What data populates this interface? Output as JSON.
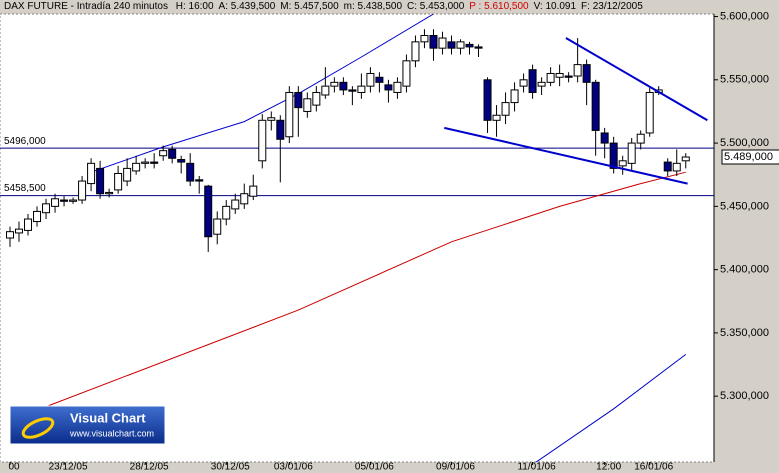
{
  "chart_data": {
    "type": "candlestick",
    "title": "DAX FUTURE - Intradía 240 minutos",
    "fields": [
      "H: 16:00",
      "A: 5.439,500",
      "M: 5.457,500",
      "m: 5.438,500",
      "C: 5.453,000",
      "P : 5.610,500",
      "V: 10.091",
      "F: 23/12/2005"
    ],
    "logo": {
      "title": "Visual Chart",
      "url": "www.visualchart.com"
    },
    "categories": [
      "00",
      null,
      null,
      null,
      null,
      null,
      "23/12/05",
      null,
      null,
      null,
      null,
      null,
      null,
      null,
      null,
      "28/12/05",
      null,
      null,
      null,
      null,
      null,
      null,
      null,
      null,
      "30/12/05",
      null,
      null,
      null,
      null,
      null,
      null,
      "03/01/06",
      null,
      null,
      null,
      null,
      null,
      null,
      null,
      null,
      "05/01/06",
      null,
      null,
      null,
      null,
      null,
      null,
      null,
      null,
      "09/01/06",
      null,
      null,
      null,
      null,
      null,
      null,
      null,
      null,
      "11/01/06",
      null,
      null,
      null,
      null,
      null,
      null,
      null,
      "12:00",
      null,
      null,
      null,
      null,
      "16/01/06",
      null,
      null,
      null,
      null
    ],
    "open": [
      5425,
      5429,
      5431,
      5438,
      5445,
      5450,
      5455,
      5454,
      5455,
      5468,
      5480,
      5460,
      5463,
      5470,
      5478,
      5484,
      5485,
      5490,
      5495,
      5487,
      5484,
      5471,
      5466,
      5428,
      5440,
      5448,
      5452,
      5458,
      5486,
      5518,
      5518,
      5505,
      5540,
      5525,
      5530,
      5538,
      5545,
      5548,
      5542,
      5540,
      5545,
      5552,
      5546,
      5540,
      5545,
      5565,
      5580,
      5585,
      5575,
      5580,
      5575,
      5578,
      5576,
      5550,
      5518,
      5522,
      5532,
      5545,
      5558,
      5545,
      5548,
      5552,
      5553,
      5553,
      5562,
      5548,
      5508,
      5500,
      5482,
      5484,
      5500,
      5508,
      5540,
      5485,
      5478,
      5486
    ],
    "high": [
      5434,
      5438,
      5444,
      5450,
      5456,
      5460,
      5458,
      5457,
      5474,
      5488,
      5486,
      5464,
      5482,
      5488,
      5490,
      5488,
      5492,
      5498,
      5498,
      5490,
      5492,
      5474,
      5467,
      5446,
      5455,
      5460,
      5468,
      5475,
      5523,
      5525,
      5522,
      5545,
      5545,
      5540,
      5545,
      5560,
      5552,
      5552,
      5545,
      5555,
      5560,
      5556,
      5550,
      5552,
      5570,
      5585,
      5590,
      5590,
      5588,
      5585,
      5582,
      5580,
      5578,
      5552,
      5530,
      5540,
      5548,
      5555,
      5562,
      5552,
      5560,
      5562,
      5556,
      5583,
      5566,
      5550,
      5512,
      5505,
      5490,
      5504,
      5510,
      5545,
      5545,
      5488,
      5495,
      5492
    ],
    "low": [
      5418,
      5422,
      5427,
      5434,
      5440,
      5445,
      5450,
      5452,
      5452,
      5462,
      5456,
      5457,
      5460,
      5466,
      5475,
      5480,
      5480,
      5486,
      5484,
      5476,
      5466,
      5460,
      5414,
      5420,
      5435,
      5444,
      5448,
      5455,
      5480,
      5510,
      5469,
      5500,
      5505,
      5520,
      5525,
      5535,
      5540,
      5538,
      5530,
      5535,
      5540,
      5540,
      5532,
      5535,
      5540,
      5560,
      5575,
      5565,
      5570,
      5570,
      5570,
      5570,
      5568,
      5508,
      5505,
      5515,
      5525,
      5540,
      5535,
      5538,
      5545,
      5545,
      5548,
      5548,
      5530,
      5490,
      5488,
      5476,
      5475,
      5478,
      5495,
      5505,
      5538,
      5474,
      5474,
      5480
    ],
    "close": [
      5430,
      5432,
      5440,
      5446,
      5452,
      5456,
      5454,
      5455,
      5470,
      5484,
      5460,
      5461,
      5476,
      5480,
      5484,
      5485,
      5484,
      5494,
      5488,
      5485,
      5470,
      5470,
      5426,
      5440,
      5450,
      5455,
      5460,
      5466,
      5518,
      5520,
      5503,
      5540,
      5528,
      5535,
      5540,
      5545,
      5548,
      5542,
      5541,
      5545,
      5555,
      5548,
      5542,
      5548,
      5565,
      5580,
      5585,
      5575,
      5583,
      5575,
      5580,
      5576,
      5575,
      5518,
      5522,
      5532,
      5542,
      5550,
      5540,
      5548,
      5555,
      5555,
      5552,
      5562,
      5548,
      5510,
      5500,
      5480,
      5486,
      5500,
      5507,
      5540,
      5542,
      5478,
      5484,
      5489
    ],
    "up_color": "#ffffff",
    "down_color": "#000080",
    "lines": [
      {
        "color": "#0000cc",
        "x": [
          9,
          17,
          26,
          32,
          39,
          47
        ],
        "values": [
          5477,
          5497,
          5517,
          5539,
          5568,
          5602
        ]
      },
      {
        "color": "#cc0000",
        "x": [
          3,
          32,
          49,
          61,
          70,
          75
        ],
        "values": [
          5289,
          5368,
          5422,
          5450,
          5468,
          5477
        ]
      },
      {
        "color": "#0000cc",
        "x": [
          58,
          67,
          75
        ],
        "values": [
          5246,
          5290,
          5333
        ]
      }
    ],
    "trendlines": [
      {
        "color": "#0000cc",
        "x": [
          61.7,
          77.4
        ],
        "values": [
          5583,
          5518
        ]
      },
      {
        "color": "#0000cc",
        "x": [
          48.2,
          75.2
        ],
        "values": [
          5512,
          5468
        ]
      }
    ],
    "levels": [
      {
        "value": 5496,
        "label": "5496,000"
      },
      {
        "value": 5458.5,
        "label": "5458,500"
      }
    ],
    "level_color": "#000080",
    "last_price": {
      "value": 5489,
      "label": "5.489,000"
    },
    "ylim": [
      5248,
      5602
    ],
    "yticks": [
      {
        "value": 5300,
        "label": "5.300,000"
      },
      {
        "value": 5350,
        "label": "5.350,000"
      },
      {
        "value": 5400,
        "label": "5.400,000"
      },
      {
        "value": 5450,
        "label": "5.450,000"
      },
      {
        "value": 5500,
        "label": "5.500,000"
      },
      {
        "value": 5550,
        "label": "5.550,000"
      },
      {
        "value": 5600,
        "label": "5.600,000"
      }
    ]
  }
}
